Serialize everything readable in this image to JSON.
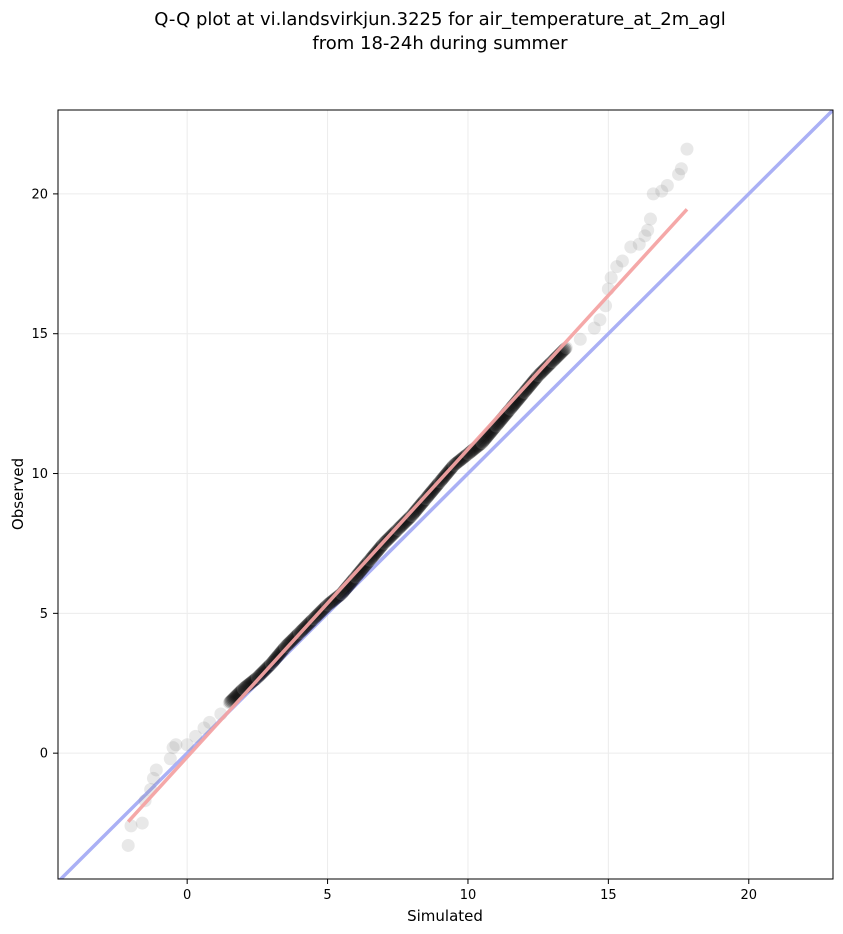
{
  "title_lines": [
    "Q-Q plot at vi.landsvirkjun.3225 for air_temperature_at_2m_agl",
    "from 18-24h during summer"
  ],
  "chart_data": {
    "type": "scatter",
    "title": "Q-Q plot at vi.landsvirkjun.3225 for air_temperature_at_2m_agl\nfrom 18-24h during summer",
    "xlabel": "Simulated",
    "ylabel": "Observed",
    "xlim": [
      -4.6,
      23.0
    ],
    "ylim": [
      -4.5,
      23.0
    ],
    "xticks": [
      0,
      5,
      10,
      15,
      20
    ],
    "yticks": [
      0,
      5,
      10,
      15,
      20
    ],
    "grid": true,
    "quantile_curve": [
      [
        -2.1,
        -3.3
      ],
      [
        -2.0,
        -2.6
      ],
      [
        -1.6,
        -2.5
      ],
      [
        -1.5,
        -1.7
      ],
      [
        -1.3,
        -1.3
      ],
      [
        -1.2,
        -0.9
      ],
      [
        -1.1,
        -0.6
      ],
      [
        -0.6,
        -0.2
      ],
      [
        -0.5,
        0.2
      ],
      [
        -0.4,
        0.3
      ],
      [
        0.0,
        0.3
      ],
      [
        0.3,
        0.6
      ],
      [
        0.6,
        0.9
      ],
      [
        0.8,
        1.1
      ],
      [
        1.2,
        1.4
      ],
      [
        1.5,
        1.8
      ],
      [
        2.0,
        2.3
      ],
      [
        2.5,
        2.7
      ],
      [
        3.0,
        3.2
      ],
      [
        3.5,
        3.8
      ],
      [
        4.0,
        4.3
      ],
      [
        4.5,
        4.8
      ],
      [
        5.0,
        5.3
      ],
      [
        5.5,
        5.7
      ],
      [
        6.0,
        6.3
      ],
      [
        6.5,
        6.9
      ],
      [
        7.0,
        7.5
      ],
      [
        7.5,
        8.0
      ],
      [
        8.0,
        8.5
      ],
      [
        8.5,
        9.1
      ],
      [
        9.0,
        9.7
      ],
      [
        9.5,
        10.3
      ],
      [
        10.0,
        10.7
      ],
      [
        10.5,
        11.1
      ],
      [
        11.0,
        11.7
      ],
      [
        11.5,
        12.3
      ],
      [
        12.0,
        12.9
      ],
      [
        12.5,
        13.5
      ],
      [
        13.0,
        14.0
      ],
      [
        13.5,
        14.5
      ],
      [
        14.0,
        14.8
      ],
      [
        14.5,
        15.2
      ],
      [
        14.7,
        15.5
      ],
      [
        14.9,
        16.0
      ],
      [
        15.0,
        16.6
      ],
      [
        15.1,
        17.0
      ],
      [
        15.3,
        17.4
      ],
      [
        15.5,
        17.6
      ],
      [
        15.8,
        18.1
      ],
      [
        16.1,
        18.2
      ],
      [
        16.3,
        18.5
      ],
      [
        16.4,
        18.7
      ],
      [
        16.5,
        19.1
      ],
      [
        16.6,
        20.0
      ],
      [
        16.9,
        20.1
      ],
      [
        17.1,
        20.3
      ],
      [
        17.5,
        20.7
      ],
      [
        17.6,
        20.9
      ],
      [
        17.8,
        21.6
      ]
    ],
    "identity_line": {
      "from": [
        -4.6,
        -4.6
      ],
      "to": [
        23.0,
        23.0
      ],
      "color": "#aab0f5"
    },
    "fit_line": {
      "from": [
        -2.1,
        -2.45
      ],
      "to": [
        17.8,
        19.45
      ],
      "color": "#f4a3a3"
    },
    "marker_color": "#808080",
    "dense_marker_color": "#000000"
  }
}
